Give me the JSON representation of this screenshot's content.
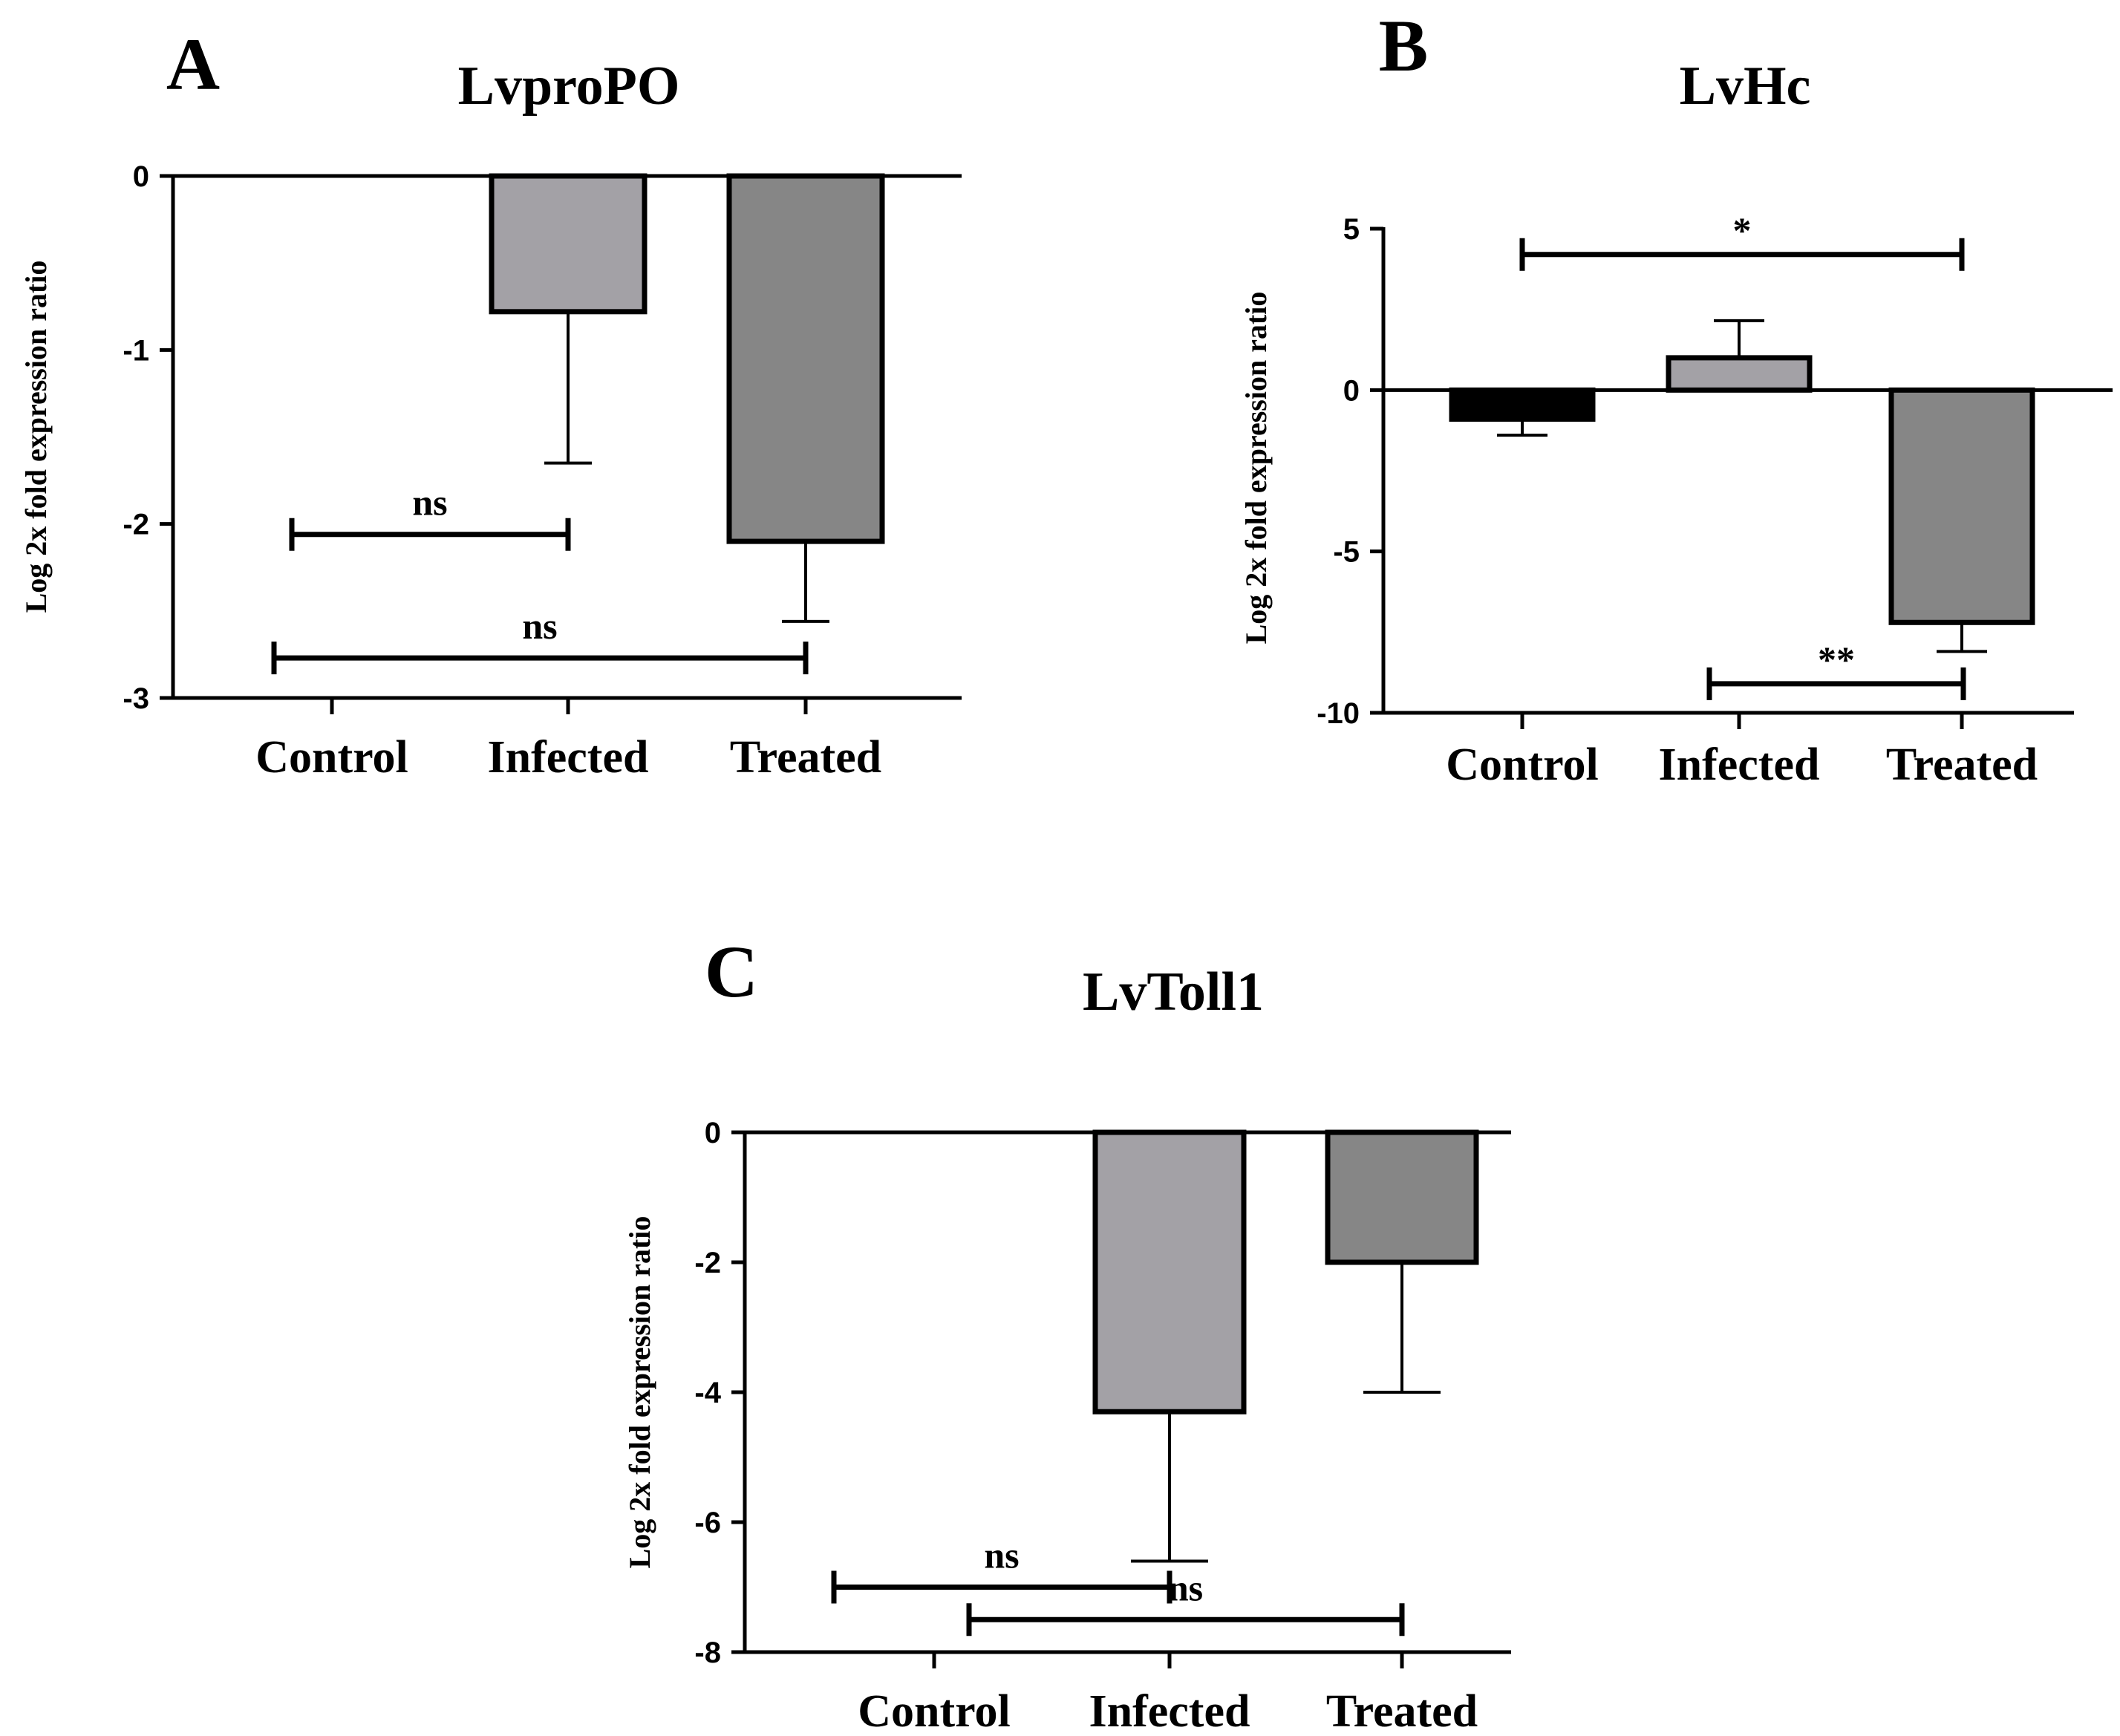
{
  "chart_data": [
    {
      "panel": "A",
      "type": "bar",
      "title": "LvproPO",
      "ylabel": "Log 2x fold expression ratio",
      "xlabel": "",
      "categories": [
        "Control",
        "Infected",
        "Treated"
      ],
      "values": [
        0,
        -0.78,
        -2.1
      ],
      "errors": [
        0,
        0.87,
        0.46
      ],
      "ylim": [
        -3,
        0
      ],
      "yticks": [
        0,
        -1,
        -2,
        -3
      ],
      "colors": [
        "#000000",
        "#a3a1a6",
        "#868686"
      ],
      "significance": [
        {
          "from": 0,
          "to": 1,
          "y": -2.06,
          "label": "ns"
        },
        {
          "from": 0,
          "to": 2,
          "y": -2.77,
          "label": "ns"
        }
      ]
    },
    {
      "panel": "B",
      "type": "bar",
      "title": "LvHc",
      "ylabel": "Log 2x fold expression ratio",
      "xlabel": "",
      "categories": [
        "Control",
        "Infected",
        "Treated"
      ],
      "values": [
        -0.9,
        1.0,
        -7.2
      ],
      "errors": [
        0.5,
        1.15,
        0.9
      ],
      "ylim": [
        -10,
        5
      ],
      "yticks": [
        5,
        0,
        -5,
        -10
      ],
      "colors": [
        "#000000",
        "#a3a1a6",
        "#868686"
      ],
      "significance": [
        {
          "from": 0,
          "to": 2,
          "y": 4.2,
          "label": "*"
        },
        {
          "from": 1,
          "to": 2,
          "y": -9.1,
          "label": "**"
        }
      ]
    },
    {
      "panel": "C",
      "type": "bar",
      "title": "LvToll1",
      "ylabel": "Log 2x fold expression ratio",
      "xlabel": "",
      "categories": [
        "Control",
        "Infected",
        "Treated"
      ],
      "values": [
        0,
        -4.3,
        -2.0
      ],
      "errors": [
        0,
        2.3,
        2.0
      ],
      "ylim": [
        -8,
        0
      ],
      "yticks": [
        0,
        -2,
        -4,
        -6,
        -8
      ],
      "colors": [
        "#000000",
        "#a3a1a6",
        "#868686"
      ],
      "significance": [
        {
          "from": 0,
          "to": 1,
          "y": -7.0,
          "label": "ns"
        },
        {
          "from": 0,
          "to": 2,
          "y": -7.5,
          "label": "ns"
        }
      ]
    }
  ]
}
